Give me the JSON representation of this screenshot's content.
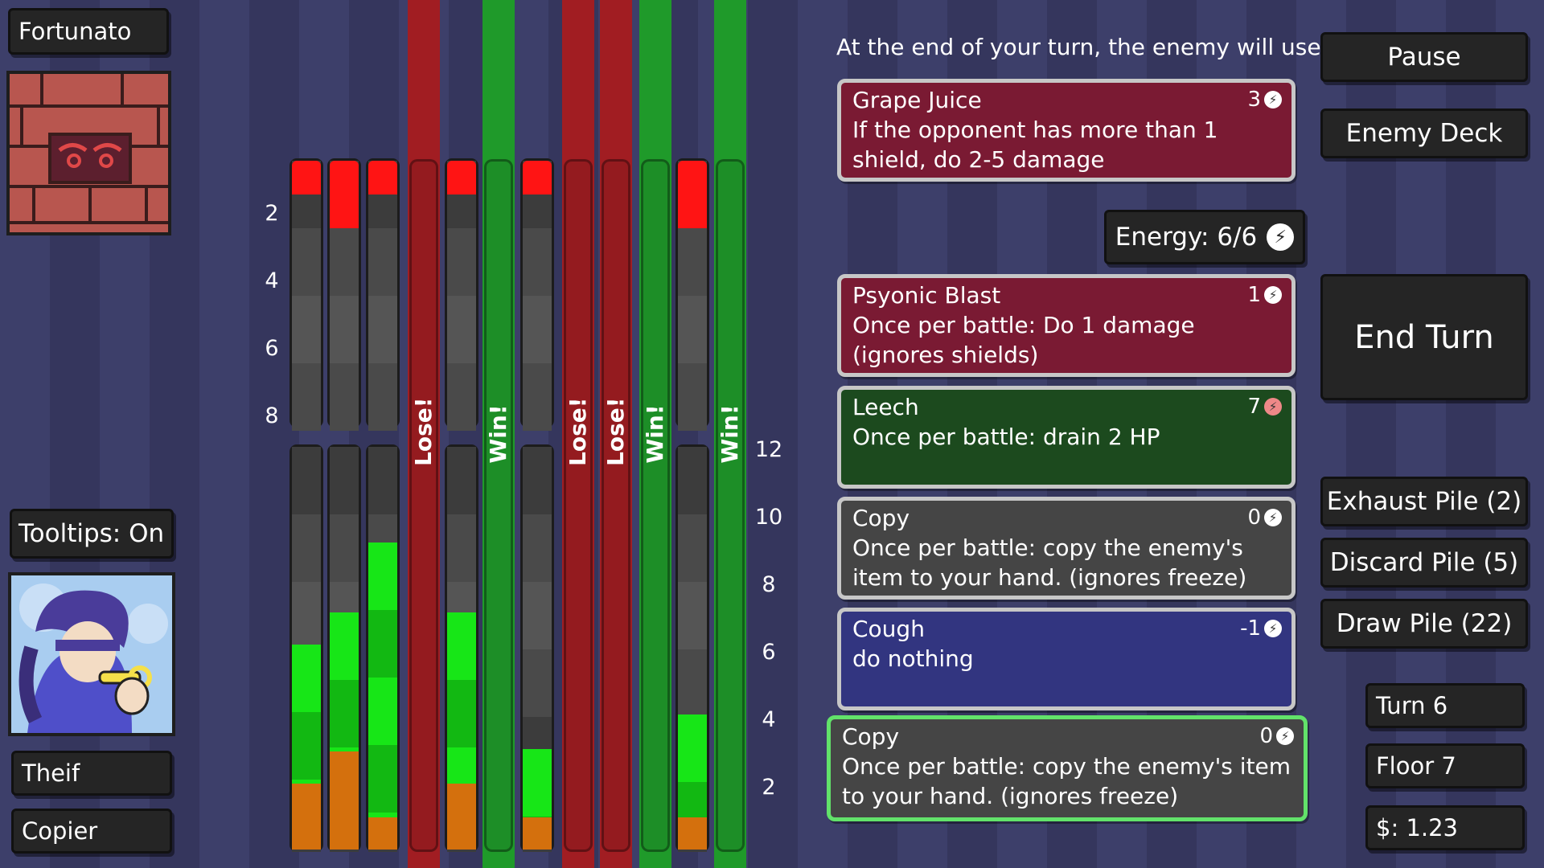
{
  "player": {
    "name": "Fortunato",
    "tooltips": "Tooltips: On",
    "class_label": "Theif",
    "ability_label": "Copier"
  },
  "battle_columns": {
    "left_axis": [
      "2",
      "4",
      "6",
      "8"
    ],
    "right_axis": [
      "12",
      "10",
      "8",
      "6",
      "4",
      "2"
    ],
    "outcome_labels": [
      {
        "text": "Lose!",
        "result": "lose"
      },
      {
        "text": "Win!",
        "result": "win"
      },
      {
        "text": "Lose!",
        "result": "lose"
      },
      {
        "text": "Lose!",
        "result": "lose"
      },
      {
        "text": "Win!",
        "result": "win"
      },
      {
        "text": "Win!",
        "result": "win"
      }
    ],
    "colors": {
      "lose": "#a11d22",
      "win": "#1f9a2a",
      "damage": "#ff1414",
      "hp_bright": "#17e617",
      "hp_dark": "#12b812",
      "shield": "#d4700d"
    }
  },
  "enemy_intent": {
    "header": "At the end of your turn, the enemy will use:",
    "card": {
      "name": "Grape Juice",
      "cost": "3",
      "desc": "If the opponent has more than 1 shield, do 2-5 damage"
    }
  },
  "energy": {
    "label": "Energy: 6/6"
  },
  "hand": [
    {
      "name": "Psyonic Blast",
      "cost": "1",
      "desc": "Once per battle: Do 1 damage (ignores shields)",
      "color": "#7a1a33"
    },
    {
      "name": "Leech",
      "cost": "7",
      "desc": "Once per battle: drain 2 HP",
      "color": "#1c4a1e"
    },
    {
      "name": "Copy",
      "cost": "0",
      "desc": "Once per battle: copy the enemy's item to your hand. (ignores freeze)",
      "color": "#454545"
    },
    {
      "name": "Cough",
      "cost": "-1",
      "desc": "do nothing",
      "color": "#323580"
    },
    {
      "name": "Copy",
      "cost": "0",
      "desc": "Once per battle: copy the enemy's item to your hand. (ignores freeze)",
      "color": "#454545"
    }
  ],
  "buttons": {
    "pause": "Pause",
    "enemy_deck": "Enemy Deck",
    "end_turn": "End Turn",
    "exhaust_pile": "Exhaust Pile (2)",
    "discard_pile": "Discard Pile (5)",
    "draw_pile": "Draw Pile (22)"
  },
  "status": {
    "turn": "Turn 6",
    "floor": "Floor 7",
    "money": "$: 1.23"
  }
}
